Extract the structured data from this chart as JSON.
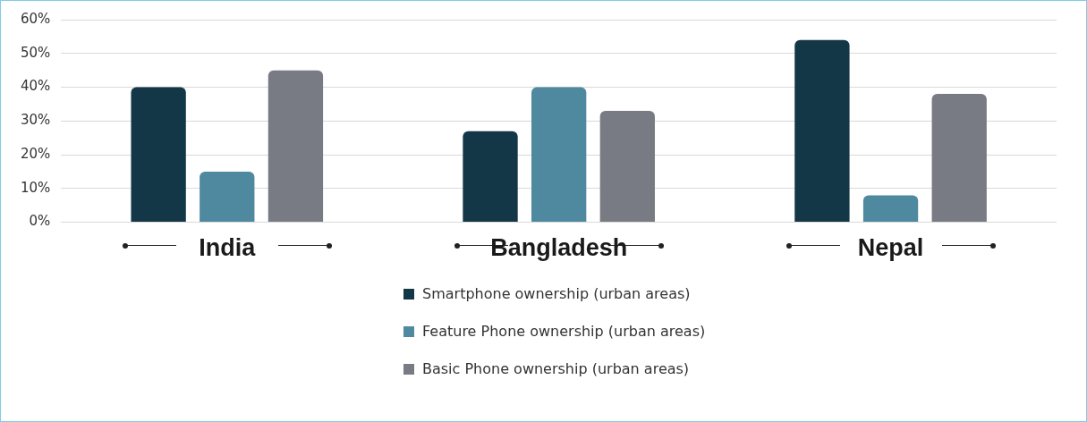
{
  "chart_data": {
    "type": "bar",
    "categories": [
      "India",
      "Bangladesh",
      "Nepal"
    ],
    "series": [
      {
        "name": "Smartphone ownership (urban areas)",
        "color": "#133747",
        "values": [
          40,
          27,
          54
        ]
      },
      {
        "name": "Feature Phone ownership (urban areas)",
        "color": "#4f89a0",
        "values": [
          15,
          40,
          8
        ]
      },
      {
        "name": "Basic Phone ownership (urban areas)",
        "color": "#787b83",
        "values": [
          45,
          33,
          38
        ]
      }
    ],
    "ylim": [
      0,
      60
    ],
    "yticks": [
      {
        "value": 0,
        "label": "0%"
      },
      {
        "value": 10,
        "label": "10%"
      },
      {
        "value": 20,
        "label": "20%"
      },
      {
        "value": 30,
        "label": "30%"
      },
      {
        "value": 40,
        "label": "40%"
      },
      {
        "value": 50,
        "label": "50%"
      },
      {
        "value": 60,
        "label": "60%"
      }
    ],
    "grid": "y",
    "legend": "bottom"
  }
}
